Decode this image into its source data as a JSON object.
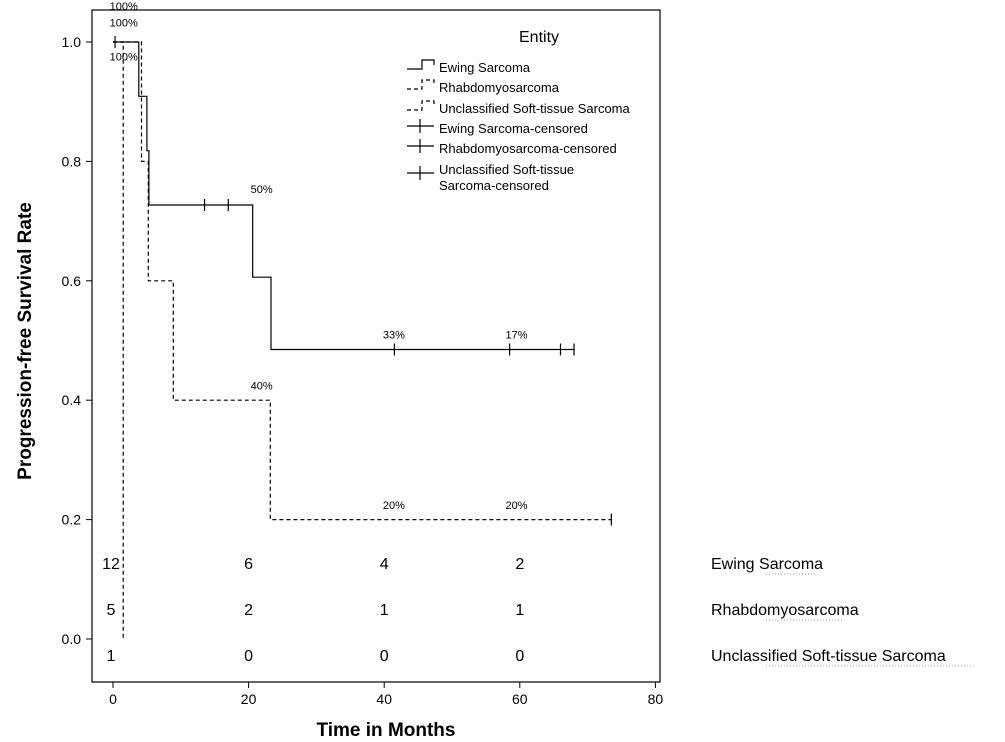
{
  "chart_data": {
    "type": "line",
    "subtype": "kaplan-meier step curves",
    "xlabel": "Time in Months",
    "ylabel": "Progression-free Survival Rate",
    "xlim": [
      -3,
      85
    ],
    "ylim": [
      -0.02,
      1.06
    ],
    "xticks": [
      "0",
      "20",
      "40",
      "60",
      "80"
    ],
    "xtick_values": [
      0,
      20,
      40,
      60,
      80
    ],
    "yticks": [
      "0.0",
      "0.2",
      "0.4",
      "0.6",
      "0.8",
      "1.0"
    ],
    "ytick_values": [
      0.0,
      0.2,
      0.4,
      0.6,
      0.8,
      1.0
    ],
    "grid": false,
    "legend": {
      "title": "Entity",
      "position": "top-right",
      "entries": [
        "Ewing Sarcoma",
        "Rhabdomyosarcoma",
        "Unclassified Soft-tissue Sarcoma",
        "Ewing Sarcoma-censored",
        "Rhabdomyosarcoma-censored",
        "Unclassified Soft-tissue Sarcoma-censored"
      ]
    },
    "series": [
      {
        "name": "Ewing Sarcoma",
        "style": "solid",
        "steps": [
          [
            0,
            1.0
          ],
          [
            3.8,
            1.0
          ],
          [
            3.8,
            0.909
          ],
          [
            5.0,
            0.909
          ],
          [
            5.0,
            0.818
          ],
          [
            5.3,
            0.818
          ],
          [
            5.3,
            0.727
          ],
          [
            20.6,
            0.727
          ],
          [
            20.6,
            0.606
          ],
          [
            23.3,
            0.606
          ],
          [
            23.3,
            0.485
          ],
          [
            68,
            0.485
          ]
        ],
        "censored": [
          [
            0.3,
            1.0
          ],
          [
            13.5,
            0.727
          ],
          [
            17.0,
            0.727
          ],
          [
            41.5,
            0.485
          ],
          [
            58.5,
            0.485
          ],
          [
            66.0,
            0.485
          ],
          [
            68.0,
            0.485
          ]
        ]
      },
      {
        "name": "Rhabdomyosarcoma",
        "style": "dashed",
        "steps": [
          [
            0,
            1.0
          ],
          [
            4.2,
            1.0
          ],
          [
            4.2,
            0.8
          ],
          [
            5.2,
            0.8
          ],
          [
            5.2,
            0.6
          ],
          [
            8.9,
            0.6
          ],
          [
            8.9,
            0.4
          ],
          [
            23.2,
            0.4
          ],
          [
            23.2,
            0.2
          ],
          [
            73.5,
            0.2
          ]
        ],
        "censored": [
          [
            73.5,
            0.2
          ]
        ]
      },
      {
        "name": "Unclassified Soft-tissue Sarcoma",
        "style": "dashed",
        "steps": [
          [
            0,
            1.0
          ],
          [
            1.5,
            1.0
          ],
          [
            1.5,
            0.0
          ]
        ],
        "censored": []
      }
    ],
    "annotations": [
      {
        "text": "100%",
        "x": -0.5,
        "y": 1.054
      },
      {
        "text": "100%",
        "x": -0.5,
        "y": 1.026
      },
      {
        "text": "100%",
        "x": -0.5,
        "y": 0.969
      },
      {
        "text": "50%",
        "x": 20.3,
        "y": 0.747
      },
      {
        "text": "33%",
        "x": 39.8,
        "y": 0.503
      },
      {
        "text": "17%",
        "x": 57.9,
        "y": 0.503
      },
      {
        "text": "40%",
        "x": 20.3,
        "y": 0.418
      },
      {
        "text": "20%",
        "x": 39.8,
        "y": 0.218
      },
      {
        "text": "20%",
        "x": 57.9,
        "y": 0.218
      }
    ],
    "numbers_at_risk": {
      "times": [
        0,
        20,
        40,
        60
      ],
      "rows": [
        {
          "label": "Ewing Sarcoma",
          "values": [
            "12",
            "6",
            "4",
            "2"
          ]
        },
        {
          "label": "Rhabdomyosarcoma",
          "values": [
            "5",
            "2",
            "1",
            "1"
          ]
        },
        {
          "label": "Unclassified Soft-tissue Sarcoma",
          "values": [
            "1",
            "0",
            "0",
            "0"
          ]
        }
      ]
    }
  }
}
